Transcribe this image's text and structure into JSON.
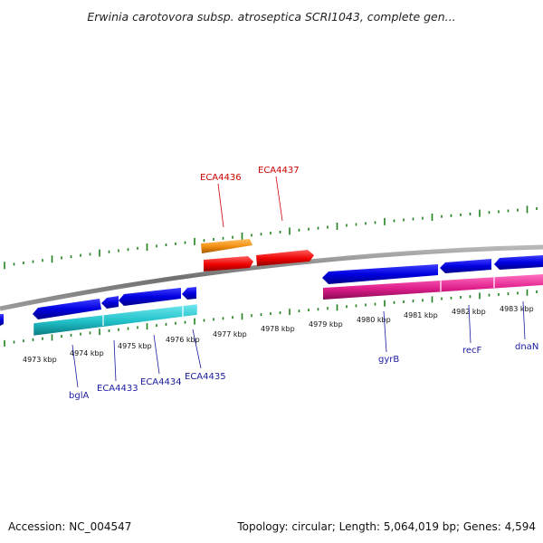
{
  "title": "Erwinia carotovora subsp. atroseptica SCRI1043, complete gen...",
  "footer": {
    "accession": "Accession: NC_004547",
    "topology": "Topology: circular; Length: 5,064,019 bp; Genes: 4,594"
  },
  "ticks": [
    "4973 kbp",
    "4974 kbp",
    "4975 kbp",
    "4976 kbp",
    "4977 kbp",
    "4978 kbp",
    "4979 kbp",
    "4980 kbp",
    "4981 kbp",
    "4982 kbp",
    "4983 kbp"
  ],
  "genes": {
    "forward": [
      "ECA4436",
      "ECA4437"
    ],
    "reverse": [
      "bglA",
      "ECA4433",
      "ECA4434",
      "ECA4435",
      "gyrB",
      "recF",
      "dnaN"
    ]
  },
  "colors": {
    "backbone": "#808080",
    "gene_blue": "#0000e0",
    "cds_cyan": "#20c0c8",
    "cds_pink": "#e0208c",
    "gene_orange": "#f08c10",
    "gene_red": "#ee0000",
    "gc_tick": "#208020",
    "label_red": "#cc0000",
    "label_blue": "#1a1aa0"
  }
}
